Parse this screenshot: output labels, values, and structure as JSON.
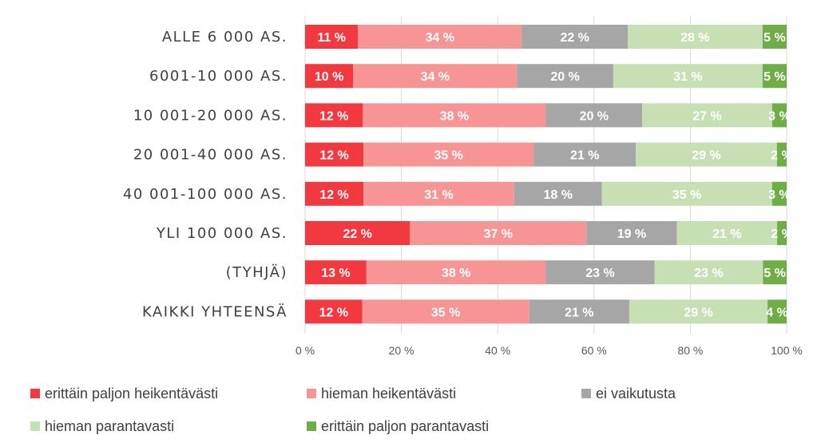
{
  "chart_data": {
    "type": "bar",
    "orientation": "horizontal",
    "stacked": true,
    "percent": true,
    "categories": [
      "ALLE 6 000 AS.",
      "6001-10 000 AS.",
      "10 001-20 000 AS.",
      "20 001-40 000 AS.",
      "40 001-100 000 AS.",
      "YLI 100 000 AS.",
      "(TYHJÄ)",
      "KAIKKI YHTEENSÄ"
    ],
    "series": [
      {
        "name": "erittäin paljon heikentävästi",
        "color": "#f2393f",
        "values": [
          11,
          10,
          12,
          12,
          12,
          22,
          13,
          12
        ],
        "labels": [
          "11 %",
          "10 %",
          "12 %",
          "12 %",
          "12 %",
          "22 %",
          "13 %",
          "12 %"
        ]
      },
      {
        "name": "hieman heikentävästi",
        "color": "#f79596",
        "values": [
          34,
          34,
          38,
          35,
          31,
          37,
          38,
          35
        ],
        "labels": [
          "34 %",
          "34 %",
          "38 %",
          "35 %",
          "31 %",
          "37 %",
          "38 %",
          "35 %"
        ]
      },
      {
        "name": "ei vaikutusta",
        "color": "#a6a6a6",
        "values": [
          22,
          20,
          20,
          21,
          18,
          19,
          23,
          21
        ],
        "labels": [
          "22 %",
          "20 %",
          "20 %",
          "21 %",
          "18 %",
          "19 %",
          "23 %",
          "21 %"
        ]
      },
      {
        "name": "hieman parantavasti",
        "color": "#c6e0b4",
        "values": [
          28,
          31,
          27,
          29,
          35,
          21,
          23,
          29
        ],
        "labels": [
          "28 %",
          "31 %",
          "27 %",
          "29 %",
          "35 %",
          "21 %",
          "23 %",
          "29 %"
        ]
      },
      {
        "name": "erittäin paljon parantavasti",
        "color": "#70ad47",
        "values": [
          5,
          5,
          3,
          2,
          3,
          2,
          5,
          4
        ],
        "labels": [
          "5 %",
          "5 %",
          "3 %",
          "2 %",
          "3 %",
          "2 %",
          "5 %",
          "4 %"
        ]
      }
    ],
    "xlim": [
      0,
      100
    ],
    "xticks": [
      0,
      20,
      40,
      60,
      80,
      100
    ],
    "xtick_labels": [
      "0 %",
      "20 %",
      "40 %",
      "60 %",
      "80 %",
      "100 %"
    ],
    "grid": true,
    "legend_position": "bottom"
  }
}
